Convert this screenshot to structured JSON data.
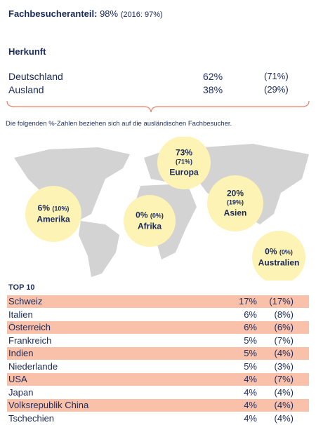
{
  "header": {
    "label": "Fachbesucheranteil:",
    "value": "98%",
    "previous": "(2016: 97%)"
  },
  "origin": {
    "title": "Herkunft",
    "rows": [
      [
        "Deutschland",
        "62%",
        "(71%)"
      ],
      [
        "Ausland",
        "38%",
        "(29%)"
      ]
    ]
  },
  "note": "Die folgenden %-Zahlen beziehen sich auf die ausländischen Fachbesucher.",
  "regions": [
    {
      "value": "73%",
      "previous": "(71%)",
      "name": "Europa"
    },
    {
      "value": "6%",
      "previous": "(10%)",
      "name": "Amerika"
    },
    {
      "value": "0%",
      "previous": "(0%)",
      "name": "Afrika"
    },
    {
      "value": "20%",
      "previous": "(19%)",
      "name": "Asien"
    },
    {
      "value": "0%",
      "previous": "(0%)",
      "name": "Australien"
    }
  ],
  "top10": {
    "title": "TOP 10",
    "rows": [
      [
        "Schweiz",
        "17%",
        "(17%)"
      ],
      [
        "Italien",
        "6%",
        "(8%)"
      ],
      [
        "Österreich",
        "6%",
        "(6%)"
      ],
      [
        "Frankreich",
        "5%",
        "(7%)"
      ],
      [
        "Indien",
        "5%",
        "(4%)"
      ],
      [
        "Niederlande",
        "5%",
        "(3%)"
      ],
      [
        "USA",
        "4%",
        "(7%)"
      ],
      [
        "Japan",
        "4%",
        "(4%)"
      ],
      [
        "Volksrepublik China",
        "4%",
        "(4%)"
      ],
      [
        "Tschechien",
        "4%",
        "(4%)"
      ]
    ]
  }
}
